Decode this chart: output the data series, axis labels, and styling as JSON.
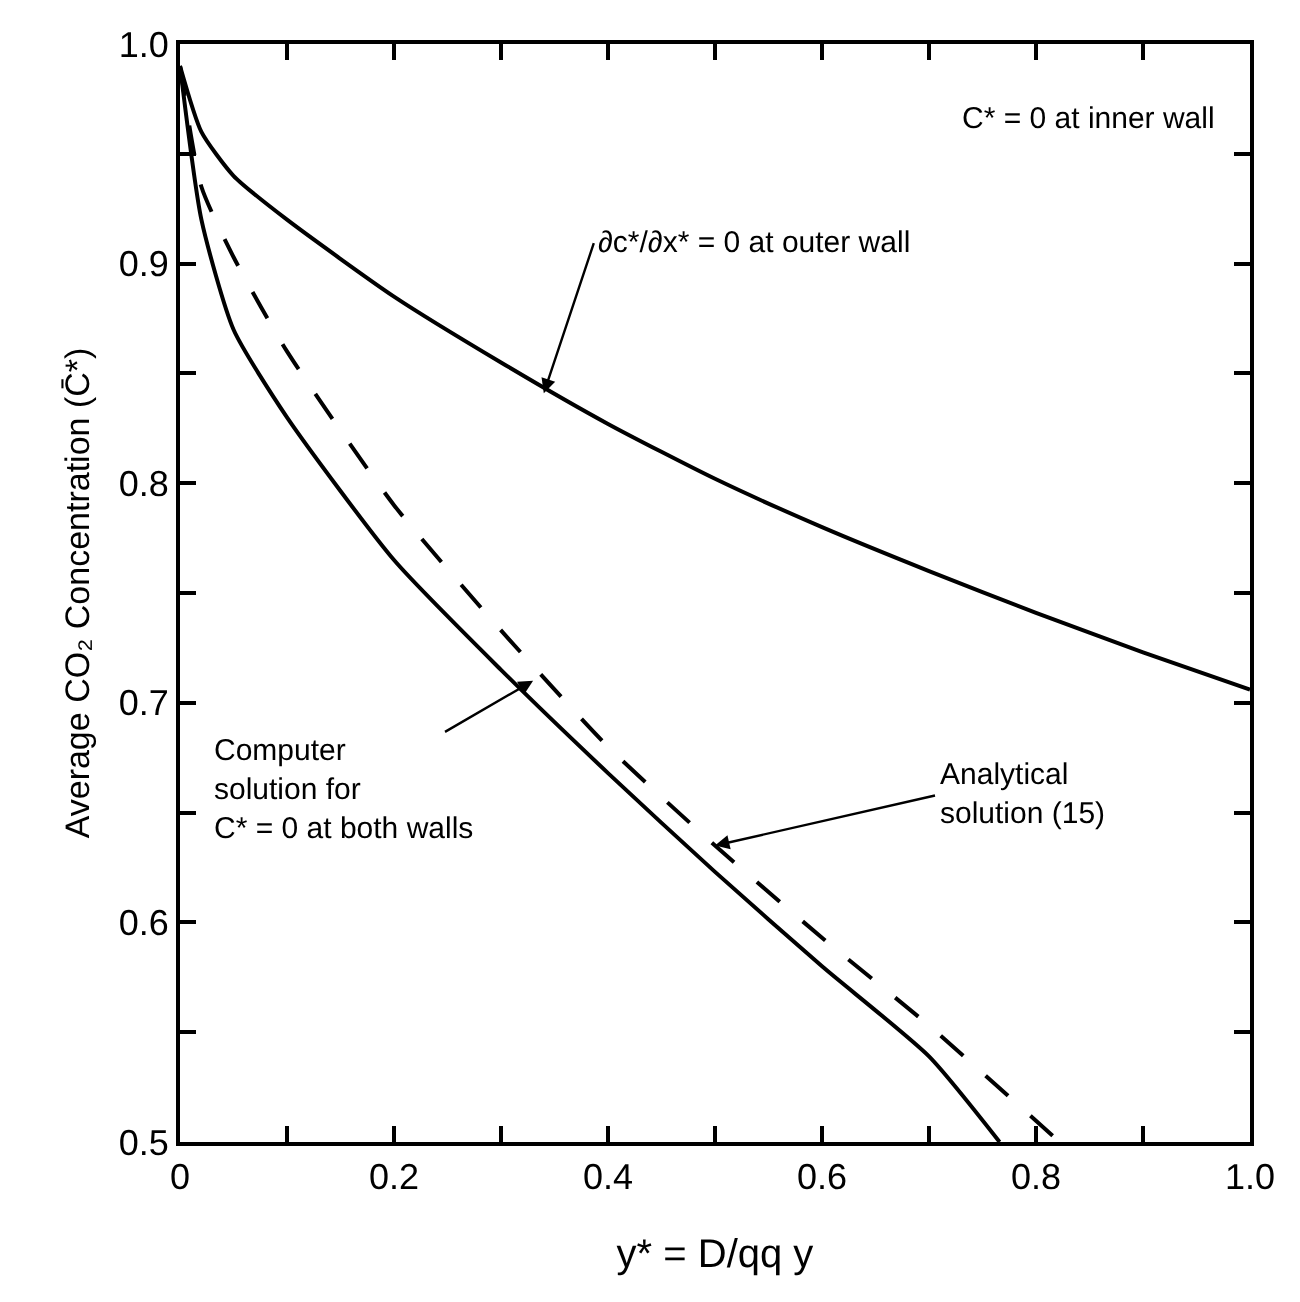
{
  "chart_data": {
    "type": "line",
    "xlabel": "y* = D/qq y",
    "ylabel": "Average CO₂ Concentration (C̄*)",
    "x": [
      0,
      0.02,
      0.05,
      0.1,
      0.2,
      0.3,
      0.4,
      0.5,
      0.6,
      0.7,
      0.8,
      0.9,
      1.0
    ],
    "series": [
      {
        "color": "#000000",
        "line_style": "solid",
        "values": [
          0.99,
          0.96,
          0.94,
          0.92,
          0.885,
          0.855,
          0.827,
          0.802,
          0.78,
          0.76,
          0.741,
          0.723,
          0.706
        ]
      },
      {
        "color": "#000000",
        "line_style": "solid",
        "x": [
          0,
          0.02,
          0.05,
          0.1,
          0.2,
          0.3,
          0.4,
          0.5,
          0.6,
          0.7,
          0.766
        ],
        "values": [
          0.99,
          0.92,
          0.87,
          0.83,
          0.765,
          0.715,
          0.668,
          0.623,
          0.58,
          0.539,
          0.5
        ]
      },
      {
        "color": "#000000",
        "line_style": "dashed",
        "x": [
          0,
          0.02,
          0.05,
          0.1,
          0.2,
          0.3,
          0.4,
          0.5,
          0.6,
          0.7,
          0.822
        ],
        "values": [
          0.99,
          0.935,
          0.903,
          0.86,
          0.79,
          0.733,
          0.68,
          0.635,
          0.593,
          0.553,
          0.5
        ]
      }
    ],
    "annotations": [
      "C* = 0 at inner wall",
      {
        "text": "∂c*/∂x* = 0 at outer wall",
        "x": 0.34,
        "y": 0.841
      },
      {
        "text": "Computer\nsolution for\nC* = 0 at both walls",
        "x": 0.33,
        "y": 0.71
      },
      {
        "text": "Analytical\nsolution (15)",
        "x": 0.5,
        "y": 0.635
      }
    ],
    "xlim": [
      0,
      1.0
    ],
    "ylim": [
      0.5,
      1.0
    ],
    "xticks": [
      0,
      {
        "value": 0.1,
        "label": null
      },
      0.2,
      {
        "value": 0.3,
        "label": null
      },
      0.4,
      {
        "value": 0.5,
        "label": null
      },
      0.6,
      {
        "value": 0.7,
        "label": null
      },
      0.8,
      {
        "value": 0.9,
        "label": null
      },
      {
        "value": 1.0,
        "label": "1.0"
      }
    ],
    "yticks": [
      0.5,
      {
        "value": 0.55,
        "label": null
      },
      0.6,
      {
        "value": 0.65,
        "label": null
      },
      0.7,
      {
        "value": 0.75,
        "label": null
      },
      0.8,
      {
        "value": 0.85,
        "label": null
      },
      0.9,
      {
        "value": 0.95,
        "label": null
      },
      {
        "value": 1.0,
        "label": "1.0"
      }
    ],
    "marker": "none"
  }
}
